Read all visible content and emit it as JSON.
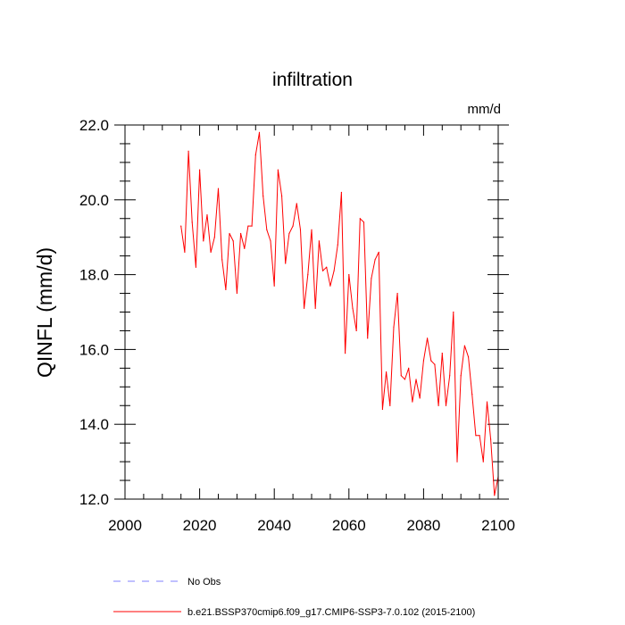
{
  "chart_data": {
    "type": "line",
    "title": "infiltration",
    "units": "mm/d",
    "xlabel": "",
    "ylabel": "QINFL  (mm/d)",
    "xlim": [
      2000,
      2100
    ],
    "ylim": [
      12.0,
      22.0
    ],
    "xticks": [
      2000,
      2020,
      2040,
      2060,
      2080,
      2100
    ],
    "xtick_labels": [
      "2000",
      "2020",
      "2040",
      "2060",
      "2080",
      "2100"
    ],
    "yticks": [
      12.0,
      14.0,
      16.0,
      18.0,
      20.0,
      22.0
    ],
    "ytick_labels": [
      "12.0",
      "14.0",
      "16.0",
      "18.0",
      "20.0",
      "22.0"
    ],
    "grid": false,
    "legend_position": "bottom",
    "colors": {
      "series": "#ff0000",
      "obs": "#8080ff",
      "axis": "#000000"
    },
    "legend": [
      {
        "label": "No Obs",
        "style": "dashed",
        "color": "#8080ff"
      },
      {
        "label": "b.e21.BSSP370cmip6.f09_g17.CMIP6-SSP3-7.0.102 (2015-2100)",
        "style": "solid",
        "color": "#ff0000"
      }
    ],
    "series": [
      {
        "name": "b.e21.BSSP370cmip6.f09_g17.CMIP6-SSP3-7.0.102 (2015-2100)",
        "x": [
          2015,
          2016,
          2017,
          2018,
          2019,
          2020,
          2021,
          2022,
          2023,
          2024,
          2025,
          2026,
          2027,
          2028,
          2029,
          2030,
          2031,
          2032,
          2033,
          2034,
          2035,
          2036,
          2037,
          2038,
          2039,
          2040,
          2041,
          2042,
          2043,
          2044,
          2045,
          2046,
          2047,
          2048,
          2049,
          2050,
          2051,
          2052,
          2053,
          2054,
          2055,
          2056,
          2057,
          2058,
          2059,
          2060,
          2061,
          2062,
          2063,
          2064,
          2065,
          2066,
          2067,
          2068,
          2069,
          2070,
          2071,
          2072,
          2073,
          2074,
          2075,
          2076,
          2077,
          2078,
          2079,
          2080,
          2081,
          2082,
          2083,
          2084,
          2085,
          2086,
          2087,
          2088,
          2089,
          2090,
          2091,
          2092,
          2093,
          2094,
          2095,
          2096,
          2097,
          2098,
          2099,
          2100
        ],
        "values": [
          19.3,
          18.6,
          21.3,
          19.4,
          18.2,
          20.8,
          18.9,
          19.6,
          18.6,
          19.0,
          20.3,
          18.4,
          17.6,
          19.1,
          18.9,
          17.5,
          19.1,
          18.7,
          19.3,
          19.3,
          21.2,
          21.8,
          20.1,
          19.2,
          18.9,
          17.7,
          20.8,
          20.1,
          18.3,
          19.1,
          19.3,
          19.9,
          19.2,
          17.1,
          18.0,
          19.2,
          17.1,
          18.9,
          18.1,
          18.2,
          17.7,
          18.1,
          18.8,
          20.2,
          15.9,
          18.0,
          17.1,
          16.5,
          19.5,
          19.4,
          16.3,
          17.9,
          18.4,
          18.6,
          14.4,
          15.4,
          14.5,
          16.6,
          17.5,
          15.3,
          15.2,
          15.5,
          14.6,
          15.2,
          14.7,
          15.7,
          16.3,
          15.7,
          15.6,
          14.5,
          15.9,
          14.5,
          15.3,
          17.0,
          13.0,
          15.3,
          16.1,
          15.8,
          14.8,
          13.7,
          13.7,
          13.0,
          14.6,
          13.6,
          12.1,
          12.6
        ]
      }
    ]
  }
}
